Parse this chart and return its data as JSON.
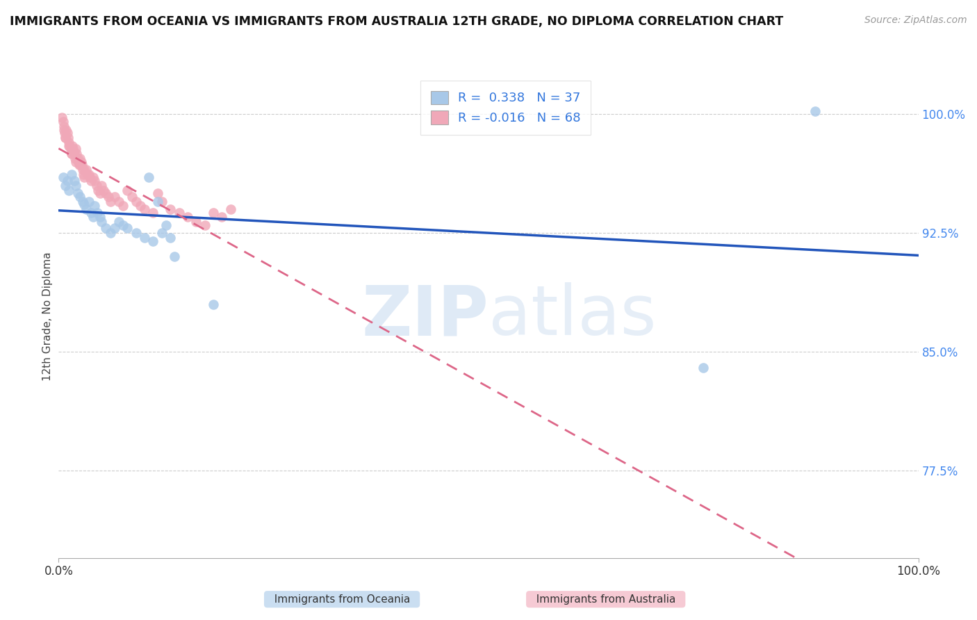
{
  "title": "IMMIGRANTS FROM OCEANIA VS IMMIGRANTS FROM AUSTRALIA 12TH GRADE, NO DIPLOMA CORRELATION CHART",
  "source": "Source: ZipAtlas.com",
  "ylabel": "12th Grade, No Diploma",
  "xlim": [
    0.0,
    1.0
  ],
  "ylim": [
    0.72,
    1.025
  ],
  "yticks": [
    0.775,
    0.85,
    0.925,
    1.0
  ],
  "ytick_labels": [
    "77.5%",
    "85.0%",
    "92.5%",
    "100.0%"
  ],
  "xticks": [
    0.0,
    1.0
  ],
  "xtick_labels": [
    "0.0%",
    "100.0%"
  ],
  "blue_R": 0.338,
  "blue_N": 37,
  "pink_R": -0.016,
  "pink_N": 68,
  "blue_color": "#a8c8e8",
  "pink_color": "#f0a8b8",
  "blue_line_color": "#2255bb",
  "pink_line_color": "#dd6688",
  "watermark_zip": "ZIP",
  "watermark_atlas": "atlas",
  "blue_scatter_x": [
    0.005,
    0.008,
    0.01,
    0.012,
    0.015,
    0.018,
    0.02,
    0.022,
    0.025,
    0.028,
    0.03,
    0.032,
    0.035,
    0.038,
    0.04,
    0.042,
    0.045,
    0.048,
    0.05,
    0.055,
    0.06,
    0.065,
    0.07,
    0.075,
    0.08,
    0.09,
    0.1,
    0.11,
    0.12,
    0.13,
    0.18,
    0.105,
    0.115,
    0.125,
    0.135,
    0.88,
    0.75
  ],
  "blue_scatter_y": [
    0.96,
    0.955,
    0.958,
    0.952,
    0.962,
    0.958,
    0.955,
    0.95,
    0.948,
    0.945,
    0.943,
    0.94,
    0.945,
    0.938,
    0.935,
    0.942,
    0.938,
    0.935,
    0.932,
    0.928,
    0.925,
    0.928,
    0.932,
    0.93,
    0.928,
    0.925,
    0.922,
    0.92,
    0.925,
    0.922,
    0.88,
    0.96,
    0.945,
    0.93,
    0.91,
    1.002,
    0.84
  ],
  "pink_scatter_x": [
    0.004,
    0.005,
    0.006,
    0.007,
    0.008,
    0.009,
    0.01,
    0.011,
    0.012,
    0.013,
    0.014,
    0.015,
    0.016,
    0.017,
    0.018,
    0.019,
    0.02,
    0.021,
    0.022,
    0.023,
    0.024,
    0.025,
    0.026,
    0.027,
    0.028,
    0.029,
    0.03,
    0.032,
    0.034,
    0.036,
    0.038,
    0.04,
    0.042,
    0.044,
    0.046,
    0.048,
    0.05,
    0.052,
    0.055,
    0.058,
    0.06,
    0.065,
    0.07,
    0.075,
    0.08,
    0.085,
    0.09,
    0.095,
    0.1,
    0.11,
    0.115,
    0.12,
    0.13,
    0.14,
    0.15,
    0.16,
    0.17,
    0.18,
    0.19,
    0.2,
    0.006,
    0.008,
    0.012,
    0.015,
    0.02,
    0.025,
    0.03,
    0.035
  ],
  "pink_scatter_y": [
    0.998,
    0.995,
    0.992,
    0.988,
    0.985,
    0.99,
    0.988,
    0.985,
    0.982,
    0.98,
    0.978,
    0.975,
    0.98,
    0.978,
    0.975,
    0.972,
    0.978,
    0.975,
    0.972,
    0.97,
    0.968,
    0.972,
    0.97,
    0.968,
    0.965,
    0.962,
    0.96,
    0.965,
    0.962,
    0.96,
    0.958,
    0.96,
    0.958,
    0.955,
    0.952,
    0.95,
    0.955,
    0.952,
    0.95,
    0.948,
    0.945,
    0.948,
    0.945,
    0.942,
    0.952,
    0.948,
    0.945,
    0.942,
    0.94,
    0.938,
    0.95,
    0.945,
    0.94,
    0.938,
    0.935,
    0.932,
    0.93,
    0.938,
    0.935,
    0.94,
    0.99,
    0.985,
    0.98,
    0.975,
    0.97,
    0.968,
    0.965,
    0.962
  ]
}
